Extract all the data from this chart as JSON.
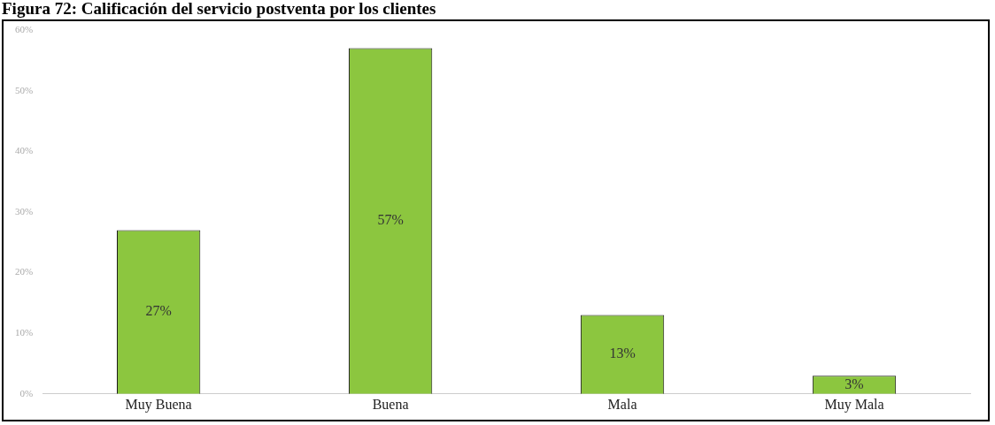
{
  "chart_data": {
    "type": "bar",
    "title": "Figura 72: Calificación del servicio postventa por los clientes",
    "categories": [
      "Muy Buena",
      "Buena",
      "Mala",
      "Muy Mala"
    ],
    "values": [
      27,
      57,
      13,
      3
    ],
    "value_labels": [
      "27%",
      "57%",
      "13%",
      "3%"
    ],
    "color": "#8cc63f",
    "ylim": [
      0,
      60
    ],
    "yticks": [
      {
        "value": 0,
        "label": "0%"
      },
      {
        "value": 10,
        "label": "10%"
      },
      {
        "value": 20,
        "label": "20%"
      },
      {
        "value": 30,
        "label": "30%"
      },
      {
        "value": 40,
        "label": "40%"
      },
      {
        "value": 50,
        "label": "50%"
      },
      {
        "value": 60,
        "label": "60%"
      }
    ],
    "grid": false,
    "legend": false
  }
}
